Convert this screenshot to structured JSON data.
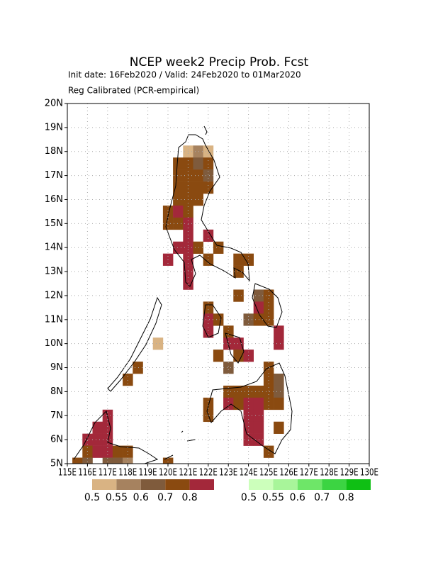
{
  "chart_data": {
    "type": "heatmap",
    "title": "NCEP week2 Precip Prob. Fcst",
    "subtitle": "Init date: 16Feb2020 / Valid: 24Feb2020 to 01Mar2020",
    "note": "Reg Calibrated (PCR-empirical)",
    "xlim": [
      115,
      130
    ],
    "ylim": [
      5,
      20
    ],
    "grid": true,
    "xticks": [
      {
        "value": 115,
        "label": "115E"
      },
      {
        "value": 116,
        "label": "116E"
      },
      {
        "value": 117,
        "label": "117E"
      },
      {
        "value": 118,
        "label": "118E"
      },
      {
        "value": 119,
        "label": "119E"
      },
      {
        "value": 120,
        "label": "120E"
      },
      {
        "value": 121,
        "label": "121E"
      },
      {
        "value": 122,
        "label": "122E"
      },
      {
        "value": 123,
        "label": "123E"
      },
      {
        "value": 124,
        "label": "124E"
      },
      {
        "value": 125,
        "label": "125E"
      },
      {
        "value": 126,
        "label": "126E"
      },
      {
        "value": 127,
        "label": "127E"
      },
      {
        "value": 128,
        "label": "128E"
      },
      {
        "value": 129,
        "label": "129E"
      },
      {
        "value": 130,
        "label": "130E"
      }
    ],
    "yticks": [
      {
        "value": 5,
        "label": "5N"
      },
      {
        "value": 6,
        "label": "6N"
      },
      {
        "value": 7,
        "label": "7N"
      },
      {
        "value": 8,
        "label": "8N"
      },
      {
        "value": 9,
        "label": "9N"
      },
      {
        "value": 10,
        "label": "10N"
      },
      {
        "value": 11,
        "label": "11N"
      },
      {
        "value": 12,
        "label": "12N"
      },
      {
        "value": 13,
        "label": "13N"
      },
      {
        "value": 14,
        "label": "14N"
      },
      {
        "value": 15,
        "label": "15N"
      },
      {
        "value": 16,
        "label": "16N"
      },
      {
        "value": 17,
        "label": "17N"
      },
      {
        "value": 18,
        "label": "18N"
      },
      {
        "value": 19,
        "label": "19N"
      },
      {
        "value": 20,
        "label": "20N"
      }
    ],
    "legends": [
      {
        "levels": [
          0.5,
          0.55,
          0.6,
          0.7,
          0.8
        ],
        "colors": [
          "#d9b383",
          "#a6825f",
          "#7f5b3c",
          "#8a4a10",
          "#a3283a"
        ]
      },
      {
        "levels": [
          0.5,
          0.55,
          0.6,
          0.7,
          0.8
        ],
        "colors": [
          "#ccffbb",
          "#a8f59a",
          "#6ee668",
          "#3cd442",
          "#0fbf14"
        ]
      }
    ],
    "cells": [
      [
        121,
        18,
        0.5
      ],
      [
        121.5,
        18,
        0.55
      ],
      [
        122,
        18,
        0.5
      ],
      [
        120.5,
        17.5,
        0.7
      ],
      [
        121,
        17.5,
        0.7
      ],
      [
        121.5,
        17.5,
        0.6
      ],
      [
        122,
        17.5,
        0.7
      ],
      [
        120.5,
        17,
        0.7
      ],
      [
        121,
        17,
        0.7
      ],
      [
        121.5,
        17,
        0.7
      ],
      [
        122,
        17,
        0.6
      ],
      [
        120.5,
        16.5,
        0.7
      ],
      [
        121,
        16.5,
        0.7
      ],
      [
        121.5,
        16.5,
        0.7
      ],
      [
        122,
        16.5,
        0.7
      ],
      [
        120.5,
        16,
        0.7
      ],
      [
        121,
        16,
        0.7
      ],
      [
        121.5,
        16,
        0.7
      ],
      [
        120,
        15.5,
        0.7
      ],
      [
        120.5,
        15.5,
        0.8
      ],
      [
        121,
        15.5,
        0.7
      ],
      [
        120,
        15,
        0.7
      ],
      [
        120.5,
        15,
        0.7
      ],
      [
        121,
        15,
        0.8
      ],
      [
        121,
        14.5,
        0.8
      ],
      [
        122,
        14.5,
        0.8
      ],
      [
        120.5,
        14,
        0.8
      ],
      [
        121,
        14,
        0.8
      ],
      [
        121.5,
        14,
        0.7
      ],
      [
        122.5,
        14,
        0.7
      ],
      [
        120,
        13.5,
        0.8
      ],
      [
        121,
        13.5,
        0.8
      ],
      [
        122,
        13.5,
        0.7
      ],
      [
        123.5,
        13.5,
        0.7
      ],
      [
        124,
        13.5,
        0.7
      ],
      [
        121,
        13,
        0.8
      ],
      [
        123.5,
        13,
        0.7
      ],
      [
        121,
        12.5,
        0.8
      ],
      [
        123.5,
        12,
        0.7
      ],
      [
        124.5,
        12,
        0.6
      ],
      [
        125,
        12,
        0.7
      ],
      [
        122,
        11.5,
        0.7
      ],
      [
        124.5,
        11.5,
        0.8
      ],
      [
        125,
        11.5,
        0.7
      ],
      [
        122,
        11,
        0.8
      ],
      [
        122.5,
        11,
        0.7
      ],
      [
        124,
        11,
        0.6
      ],
      [
        124.5,
        11,
        0.7
      ],
      [
        125,
        11,
        0.7
      ],
      [
        122,
        10.5,
        0.8
      ],
      [
        123,
        10.5,
        0.7
      ],
      [
        125.5,
        10.5,
        0.8
      ],
      [
        119.5,
        10,
        0.5
      ],
      [
        123,
        10,
        0.8
      ],
      [
        123.5,
        10,
        0.8
      ],
      [
        125.5,
        10,
        0.8
      ],
      [
        122.5,
        9.5,
        0.7
      ],
      [
        123.5,
        9.5,
        0.7
      ],
      [
        124,
        9.5,
        0.8
      ],
      [
        118.5,
        9,
        0.7
      ],
      [
        123,
        9,
        0.6
      ],
      [
        125,
        9,
        0.7
      ],
      [
        118,
        8.5,
        0.7
      ],
      [
        125,
        8.5,
        0.7
      ],
      [
        125.5,
        8.5,
        0.6
      ],
      [
        123,
        8,
        0.7
      ],
      [
        123.5,
        8,
        0.7
      ],
      [
        124,
        8,
        0.7
      ],
      [
        124.5,
        8,
        0.7
      ],
      [
        125,
        8,
        0.7
      ],
      [
        125.5,
        8,
        0.6
      ],
      [
        122,
        7.5,
        0.7
      ],
      [
        123,
        7.5,
        0.8
      ],
      [
        123.5,
        7.5,
        0.7
      ],
      [
        124,
        7.5,
        0.8
      ],
      [
        124.5,
        7.5,
        0.8
      ],
      [
        125,
        7.5,
        0.7
      ],
      [
        125.5,
        7.5,
        0.7
      ],
      [
        117,
        7,
        0.8
      ],
      [
        122,
        7,
        0.7
      ],
      [
        124,
        7,
        0.8
      ],
      [
        124.5,
        7,
        0.8
      ],
      [
        116.5,
        6.5,
        0.8
      ],
      [
        117,
        6.5,
        0.8
      ],
      [
        124,
        6.5,
        0.8
      ],
      [
        124.5,
        6.5,
        0.8
      ],
      [
        125.5,
        6.5,
        0.7
      ],
      [
        116,
        6,
        0.8
      ],
      [
        116.5,
        6,
        0.8
      ],
      [
        117,
        6,
        0.8
      ],
      [
        124,
        6,
        0.8
      ],
      [
        124.5,
        6,
        0.8
      ],
      [
        116,
        5.5,
        0.7
      ],
      [
        116.5,
        5.5,
        0.8
      ],
      [
        117,
        5.5,
        0.8
      ],
      [
        117.5,
        5.5,
        0.7
      ],
      [
        118,
        5.5,
        0.7
      ],
      [
        125,
        5.5,
        0.7
      ],
      [
        115.5,
        5,
        0.7
      ],
      [
        116,
        5,
        0.6
      ],
      [
        117,
        5,
        0.6
      ],
      [
        117.5,
        5,
        0.6
      ],
      [
        118,
        5,
        0.55
      ],
      [
        120,
        5,
        0.7
      ]
    ]
  }
}
